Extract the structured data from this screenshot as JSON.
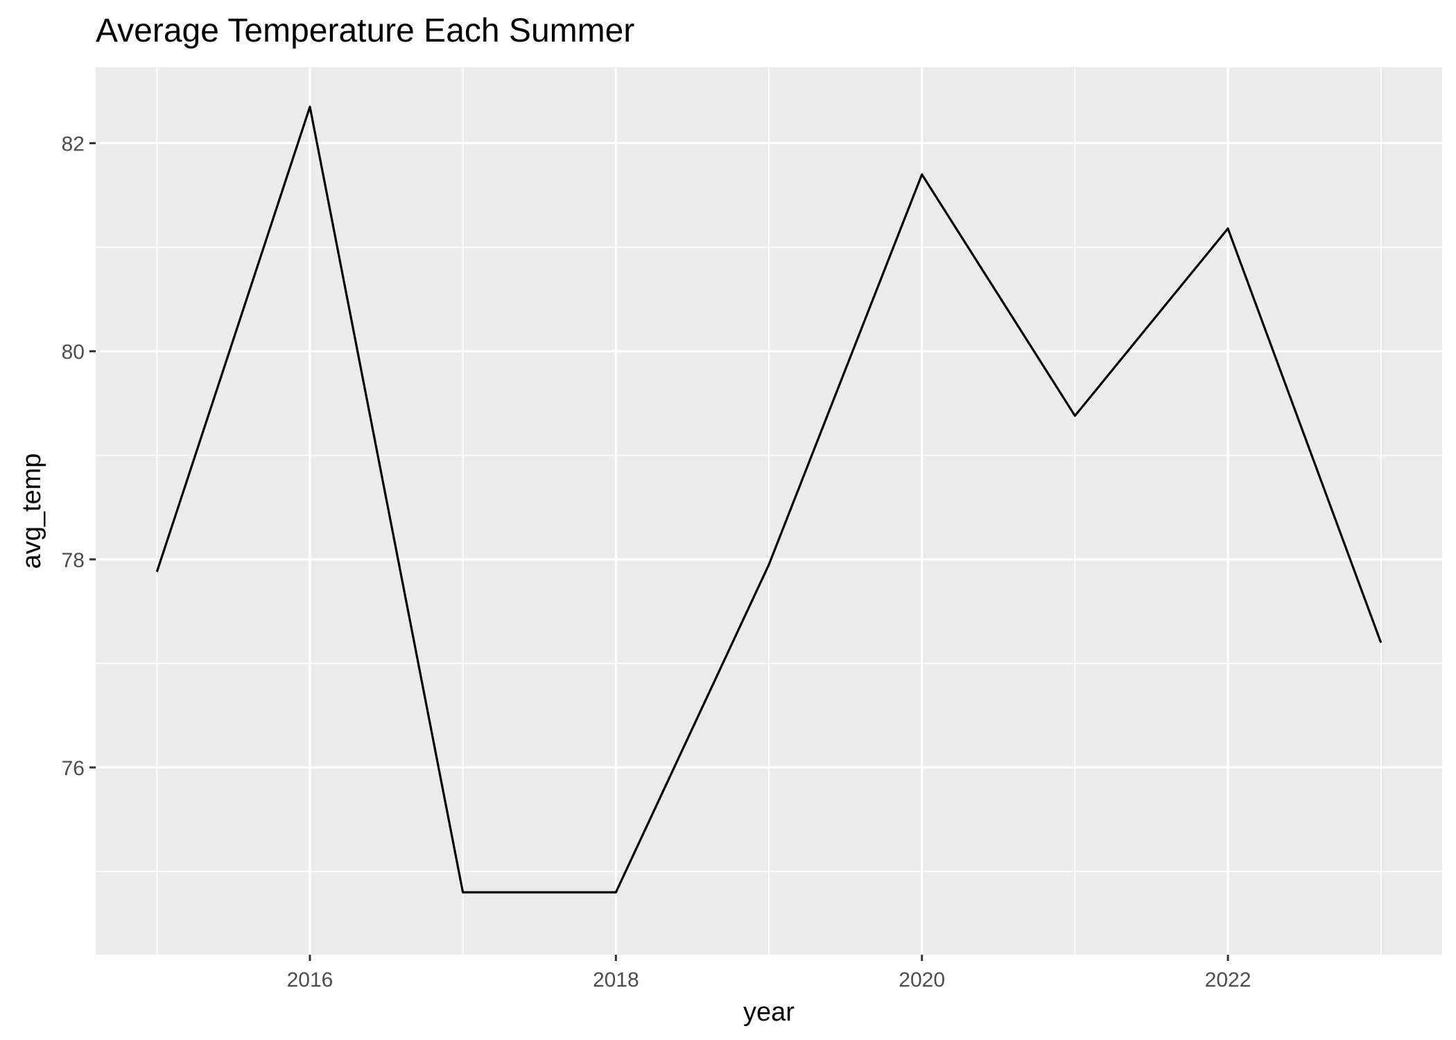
{
  "chart_data": {
    "type": "line",
    "title": "Average Temperature Each Summer",
    "xlabel": "year",
    "ylabel": "avg_temp",
    "x": [
      2015,
      2016,
      2017,
      2018,
      2019,
      2020,
      2021,
      2022,
      2023
    ],
    "y": [
      77.88,
      82.35,
      74.8,
      74.8,
      77.95,
      81.7,
      79.38,
      81.18,
      77.2
    ],
    "xlim": [
      2014.6,
      2023.4
    ],
    "ylim": [
      74.2,
      82.73
    ],
    "x_ticks": [
      2016,
      2018,
      2020,
      2022
    ],
    "x_tick_labels": [
      "2016",
      "2018",
      "2020",
      "2022"
    ],
    "y_ticks": [
      76,
      78,
      80,
      82
    ],
    "y_tick_labels": [
      "76",
      "78",
      "80",
      "82"
    ],
    "grid": true,
    "colors": {
      "panel": "#ebebeb",
      "grid": "#ffffff",
      "line": "#000000",
      "tick_text": "#4d4d4d",
      "tick_mark": "#333333"
    }
  }
}
